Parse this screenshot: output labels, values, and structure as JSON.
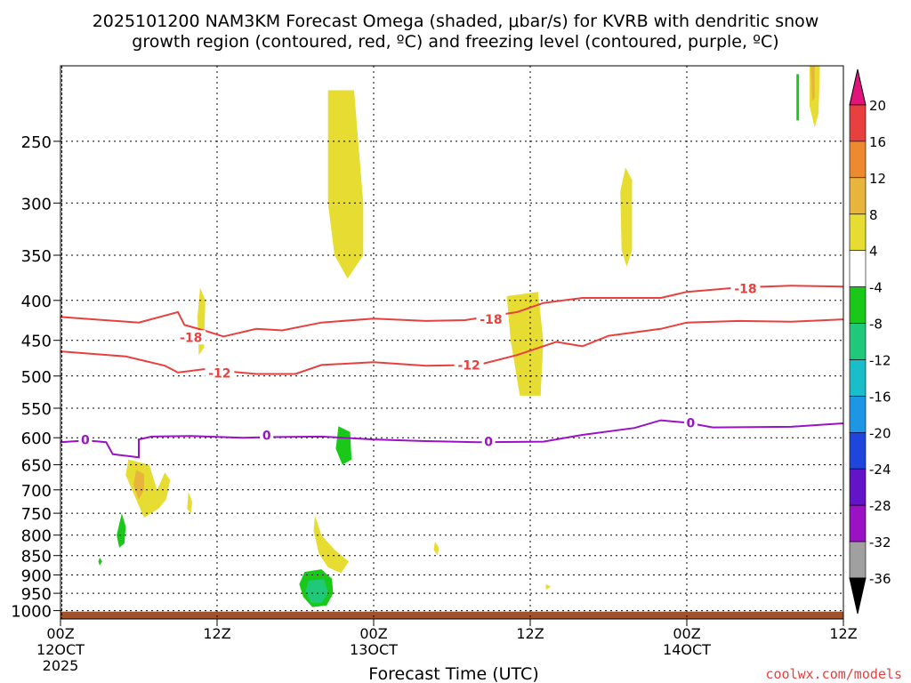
{
  "colors": {
    "ground": "#a0522d",
    "dgz": "#e8403f",
    "freezing": "#9a12c4",
    "credit": "#e8403f",
    "grid": "#000000"
  },
  "chart_data": {
    "type": "heatmap",
    "title_line1": "2025101200 NAM3KM Forecast Omega (shaded, μbar/s) for KVRB with dendritic snow",
    "title_line2": "growth region (contoured, red, ºC) and freezing level (contoured, purple, ºC)",
    "xlabel": "Forecast Time (UTC)",
    "credit": "coolwx.com/models",
    "x_range_hours": [
      0,
      60
    ],
    "y_range_hpa": [
      1025,
      200
    ],
    "y_scale": "log",
    "grid": true,
    "x_ticks": [
      {
        "hour": 0,
        "label": "00Z",
        "sub1": "12OCT",
        "sub2": "2025"
      },
      {
        "hour": 12,
        "label": "12Z",
        "sub1": "",
        "sub2": ""
      },
      {
        "hour": 24,
        "label": "00Z",
        "sub1": "13OCT",
        "sub2": ""
      },
      {
        "hour": 36,
        "label": "12Z",
        "sub1": "",
        "sub2": ""
      },
      {
        "hour": 48,
        "label": "00Z",
        "sub1": "14OCT",
        "sub2": ""
      },
      {
        "hour": 60,
        "label": "12Z",
        "sub1": "",
        "sub2": ""
      }
    ],
    "y_ticks": [
      {
        "p": 250,
        "label": "250"
      },
      {
        "p": 300,
        "label": "300"
      },
      {
        "p": 350,
        "label": "350"
      },
      {
        "p": 400,
        "label": "400"
      },
      {
        "p": 450,
        "label": "450"
      },
      {
        "p": 500,
        "label": "500"
      },
      {
        "p": 550,
        "label": "550"
      },
      {
        "p": 600,
        "label": "600"
      },
      {
        "p": 650,
        "label": "650"
      },
      {
        "p": 700,
        "label": "700"
      },
      {
        "p": 750,
        "label": "750"
      },
      {
        "p": 800,
        "label": "800"
      },
      {
        "p": 850,
        "label": "850"
      },
      {
        "p": 900,
        "label": "900"
      },
      {
        "p": 950,
        "label": "950"
      },
      {
        "p": 1000,
        "label": "1000"
      }
    ],
    "colorbar": [
      {
        "label": "20",
        "color": "#e8403f"
      },
      {
        "label": "16",
        "color": "#e8402f"
      },
      {
        "label": "12",
        "color": "#ec8a2d"
      },
      {
        "label": "8",
        "color": "#e8b43c"
      },
      {
        "label": "4",
        "color": "#e6dc32"
      },
      {
        "label": "-4",
        "color": "#ffffff"
      },
      {
        "label": "-8",
        "color": "#1ac81a"
      },
      {
        "label": "-12",
        "color": "#20c87a"
      },
      {
        "label": "-16",
        "color": "#1abec8"
      },
      {
        "label": "-20",
        "color": "#1e96e6"
      },
      {
        "label": "-24",
        "color": "#1e46dc"
      },
      {
        "label": "-28",
        "color": "#6414c8"
      },
      {
        "label": "-32",
        "color": "#9a12c4"
      },
      {
        "label": "-36",
        "color": "#a0a0a0"
      }
    ],
    "colorbar_top_color": "#e0147a",
    "colorbar_bottom_color": "#000000",
    "ground_top_hpa": 1003,
    "dgz_contours": [
      {
        "label": "-18",
        "points": [
          [
            0,
            420
          ],
          [
            6,
            427
          ],
          [
            9,
            414
          ],
          [
            9.5,
            430
          ],
          [
            11,
            437
          ],
          [
            12.5,
            445
          ],
          [
            15,
            435
          ],
          [
            17,
            437
          ],
          [
            20,
            427
          ],
          [
            24,
            422
          ],
          [
            28,
            425
          ],
          [
            31,
            424
          ],
          [
            35,
            414
          ],
          [
            37,
            403
          ],
          [
            40,
            397
          ],
          [
            46,
            397
          ],
          [
            48,
            390
          ],
          [
            52,
            385
          ],
          [
            56,
            383
          ],
          [
            60,
            384
          ]
        ],
        "labels": [
          [
            10,
            446
          ],
          [
            33,
            423
          ],
          [
            52.5,
            386
          ]
        ]
      },
      {
        "label": "-12",
        "points": [
          [
            0,
            465
          ],
          [
            5,
            472
          ],
          [
            8,
            485
          ],
          [
            9,
            495
          ],
          [
            11,
            490
          ],
          [
            15,
            497
          ],
          [
            18,
            497
          ],
          [
            20,
            484
          ],
          [
            24,
            480
          ],
          [
            28,
            485
          ],
          [
            32,
            484
          ],
          [
            35,
            470
          ],
          [
            38,
            452
          ],
          [
            40,
            458
          ],
          [
            42,
            444
          ],
          [
            46,
            435
          ],
          [
            48,
            427
          ],
          [
            52,
            425
          ],
          [
            56,
            426
          ],
          [
            60,
            423
          ]
        ],
        "labels": [
          [
            12.2,
            496
          ],
          [
            31.3,
            484
          ]
        ]
      }
    ],
    "freezing_contours": [
      {
        "label": "0",
        "points": [
          [
            0,
            608
          ],
          [
            2,
            605
          ],
          [
            3.5,
            608
          ],
          [
            4,
            630
          ],
          [
            6,
            636
          ],
          [
            6,
            603
          ],
          [
            7,
            598
          ],
          [
            10,
            597
          ],
          [
            14,
            600
          ],
          [
            16,
            599
          ],
          [
            20,
            598
          ],
          [
            24,
            603
          ],
          [
            28,
            606
          ],
          [
            32,
            608
          ],
          [
            37,
            607
          ],
          [
            40,
            595
          ],
          [
            44,
            583
          ],
          [
            46,
            570
          ],
          [
            48,
            574
          ],
          [
            50,
            582
          ],
          [
            56,
            581
          ],
          [
            60,
            575
          ]
        ],
        "labels": [
          [
            1.9,
            604
          ],
          [
            15.8,
            596
          ],
          [
            32.8,
            607
          ],
          [
            48.3,
            574
          ]
        ]
      }
    ],
    "omega_regions": [
      {
        "value_range": [
          4,
          8
        ],
        "points": [
          [
            20.5,
            215
          ],
          [
            22.5,
            215
          ],
          [
            23.2,
            300
          ],
          [
            23.2,
            350
          ],
          [
            22,
            375
          ],
          [
            21,
            350
          ],
          [
            20.5,
            300
          ]
        ]
      },
      {
        "value_range": [
          4,
          8
        ],
        "points": [
          [
            34.2,
            395
          ],
          [
            36.6,
            390
          ],
          [
            37,
            450
          ],
          [
            36.8,
            530
          ],
          [
            35.2,
            530
          ],
          [
            34.5,
            450
          ]
        ]
      },
      {
        "value_range": [
          4,
          8
        ],
        "points": [
          [
            43.3,
            270
          ],
          [
            43.8,
            280
          ],
          [
            43.8,
            345
          ],
          [
            43.4,
            362
          ],
          [
            43,
            345
          ],
          [
            42.9,
            290
          ]
        ]
      },
      {
        "value_range": [
          4,
          8
        ],
        "points": [
          [
            57.4,
            200
          ],
          [
            58.2,
            200
          ],
          [
            58.1,
            230
          ],
          [
            57.8,
            240
          ],
          [
            57.4,
            225
          ]
        ]
      },
      {
        "value_range": [
          4,
          8
        ],
        "points": [
          [
            10.7,
            385
          ],
          [
            11.1,
            400
          ],
          [
            11,
            460
          ],
          [
            10.6,
            470
          ],
          [
            10.5,
            420
          ]
        ]
      },
      {
        "value_range": [
          4,
          8
        ],
        "points": [
          [
            5.2,
            640
          ],
          [
            6.8,
            650
          ],
          [
            7.4,
            700
          ],
          [
            8,
            665
          ],
          [
            8.4,
            680
          ],
          [
            8.1,
            720
          ],
          [
            7.5,
            740
          ],
          [
            6.4,
            760
          ],
          [
            5.8,
            720
          ],
          [
            5.0,
            670
          ]
        ]
      },
      {
        "value_range": [
          4,
          8
        ],
        "points": [
          [
            9.8,
            705
          ],
          [
            10.1,
            725
          ],
          [
            10,
            750
          ],
          [
            9.7,
            740
          ]
        ]
      },
      {
        "value_range": [
          4,
          8
        ],
        "points": [
          [
            19.5,
            755
          ],
          [
            20.0,
            800
          ],
          [
            21,
            835
          ],
          [
            22.1,
            865
          ],
          [
            21.5,
            895
          ],
          [
            20.5,
            880
          ],
          [
            19.8,
            845
          ],
          [
            19.4,
            790
          ]
        ]
      },
      {
        "value_range": [
          4,
          8
        ],
        "points": [
          [
            28.7,
            815
          ],
          [
            29.0,
            830
          ],
          [
            28.9,
            850
          ],
          [
            28.6,
            835
          ]
        ]
      },
      {
        "value_range": [
          4,
          8
        ],
        "points": [
          [
            37.2,
            925
          ],
          [
            37.6,
            932
          ],
          [
            37.2,
            940
          ]
        ]
      },
      {
        "value_range": [
          8,
          12
        ],
        "points": [
          [
            5.8,
            660
          ],
          [
            6.4,
            668
          ],
          [
            6.4,
            700
          ],
          [
            6.0,
            720
          ],
          [
            5.6,
            690
          ]
        ]
      },
      {
        "value_range": [
          8,
          12
        ],
        "points": [
          [
            57.5,
            200
          ],
          [
            57.8,
            200
          ],
          [
            57.8,
            220
          ],
          [
            57.6,
            222
          ]
        ]
      },
      {
        "value_range": [
          -8,
          -4
        ],
        "points": [
          [
            21.3,
            580
          ],
          [
            22.2,
            590
          ],
          [
            22.3,
            640
          ],
          [
            21.6,
            650
          ],
          [
            21.1,
            620
          ]
        ]
      },
      {
        "value_range": [
          -8,
          -4
        ],
        "points": [
          [
            4.7,
            750
          ],
          [
            5.0,
            780
          ],
          [
            4.9,
            820
          ],
          [
            4.5,
            830
          ],
          [
            4.3,
            800
          ]
        ]
      },
      {
        "value_range": [
          -8,
          -4
        ],
        "points": [
          [
            3.0,
            855
          ],
          [
            3.2,
            865
          ],
          [
            3.0,
            875
          ],
          [
            2.9,
            865
          ]
        ]
      },
      {
        "value_range": [
          -8,
          -4
        ],
        "points": [
          [
            18.7,
            892
          ],
          [
            20.0,
            885
          ],
          [
            20.8,
            910
          ],
          [
            20.9,
            950
          ],
          [
            20.4,
            985
          ],
          [
            19.3,
            990
          ],
          [
            18.6,
            960
          ],
          [
            18.3,
            925
          ]
        ]
      },
      {
        "value_range": [
          -8,
          -4
        ],
        "points": [
          [
            56.4,
            205
          ],
          [
            56.6,
            205
          ],
          [
            56.6,
            235
          ],
          [
            56.4,
            235
          ]
        ]
      },
      {
        "value_range": [
          -12,
          -8
        ],
        "points": [
          [
            19.0,
            915
          ],
          [
            20.2,
            912
          ],
          [
            20.5,
            950
          ],
          [
            20.0,
            978
          ],
          [
            19.2,
            978
          ],
          [
            18.8,
            945
          ]
        ]
      }
    ]
  }
}
